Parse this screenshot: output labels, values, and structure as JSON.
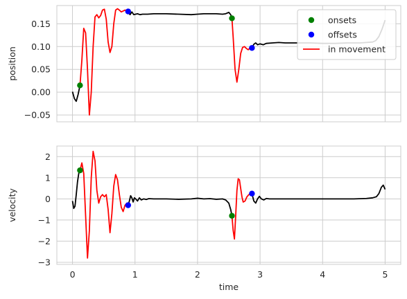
{
  "chart_data": [
    {
      "type": "line",
      "ylabel": "position",
      "xlabel": "",
      "xlim": [
        -0.25,
        5.25
      ],
      "ylim": [
        -0.065,
        0.19
      ],
      "x_ticks": [
        0,
        1,
        2,
        3,
        4,
        5
      ],
      "show_x_tick_labels": false,
      "y_ticks": [
        -0.05,
        0.0,
        0.05,
        0.1,
        0.15
      ],
      "y_tick_labels": [
        "−0.05",
        "0.00",
        "0.05",
        "0.10",
        "0.15"
      ],
      "grid": true,
      "legend": "top-right",
      "legend_entries": [
        {
          "label": "onsets",
          "kind": "marker",
          "color": "#008000"
        },
        {
          "label": "offsets",
          "kind": "marker",
          "color": "#0000ff"
        },
        {
          "label": "in movement",
          "kind": "line",
          "color": "#ff0000"
        }
      ],
      "series": [
        {
          "name": "",
          "color": "#000000",
          "x": [
            0,
            0.03,
            0.06,
            0.09,
            0.12
          ],
          "y": [
            0.001,
            -0.014,
            -0.02,
            -0.005,
            0.015
          ]
        },
        {
          "name": "in movement",
          "color": "#ff0000",
          "x": [
            0.12,
            0.15,
            0.18,
            0.21,
            0.24,
            0.27,
            0.3,
            0.33,
            0.36,
            0.39,
            0.42,
            0.45,
            0.48,
            0.51,
            0.54,
            0.57,
            0.6,
            0.63,
            0.66,
            0.69,
            0.72,
            0.75,
            0.78,
            0.81,
            0.84,
            0.87,
            0.89
          ],
          "y": [
            0.015,
            0.07,
            0.14,
            0.13,
            0.05,
            -0.05,
            0.0,
            0.1,
            0.165,
            0.17,
            0.163,
            0.168,
            0.18,
            0.182,
            0.16,
            0.11,
            0.087,
            0.1,
            0.15,
            0.18,
            0.183,
            0.18,
            0.176,
            0.178,
            0.18,
            0.178,
            0.177
          ]
        },
        {
          "name": "",
          "color": "#000000",
          "x": [
            0.89,
            0.92,
            0.95,
            0.98,
            1.01,
            1.04,
            1.08,
            1.12,
            1.2,
            1.3,
            1.5,
            1.7,
            1.9,
            2.0,
            2.1,
            2.2,
            2.3,
            2.4,
            2.45,
            2.5,
            2.53,
            2.55
          ],
          "y": [
            0.177,
            0.17,
            0.176,
            0.17,
            0.171,
            0.172,
            0.17,
            0.171,
            0.171,
            0.172,
            0.172,
            0.171,
            0.17,
            0.171,
            0.172,
            0.172,
            0.172,
            0.171,
            0.172,
            0.175,
            0.17,
            0.162
          ]
        },
        {
          "name": "in movement",
          "color": "#ff0000",
          "x": [
            2.55,
            2.57,
            2.6,
            2.63,
            2.66,
            2.69,
            2.72,
            2.75,
            2.78,
            2.81,
            2.84,
            2.87
          ],
          "y": [
            0.162,
            0.12,
            0.05,
            0.022,
            0.05,
            0.085,
            0.098,
            0.1,
            0.096,
            0.093,
            0.097,
            0.097
          ]
        },
        {
          "name": "",
          "color": "#000000",
          "x": [
            2.87,
            2.9,
            2.93,
            2.96,
            3.0,
            3.05,
            3.1,
            3.2,
            3.3,
            3.4,
            3.6,
            3.8,
            4.0,
            4.2,
            4.4,
            4.6,
            4.7,
            4.8,
            4.85,
            4.9,
            4.95,
            5.0
          ],
          "y": [
            0.097,
            0.105,
            0.108,
            0.104,
            0.106,
            0.104,
            0.107,
            0.108,
            0.109,
            0.108,
            0.108,
            0.108,
            0.107,
            0.107,
            0.108,
            0.108,
            0.109,
            0.11,
            0.113,
            0.122,
            0.138,
            0.158
          ]
        }
      ],
      "onsets": {
        "x": [
          0.12,
          2.55
        ],
        "y": [
          0.015,
          0.162
        ],
        "color": "#008000"
      },
      "offsets": {
        "x": [
          0.89,
          2.87
        ],
        "y": [
          0.177,
          0.097
        ],
        "color": "#0000ff"
      }
    },
    {
      "type": "line",
      "ylabel": "velocity",
      "xlabel": "time",
      "xlim": [
        -0.25,
        5.25
      ],
      "ylim": [
        -3.1,
        2.5
      ],
      "x_ticks": [
        0,
        1,
        2,
        3,
        4,
        5
      ],
      "x_tick_labels": [
        "0",
        "1",
        "2",
        "3",
        "4",
        "5"
      ],
      "y_ticks": [
        -3,
        -2,
        -1,
        0,
        1,
        2
      ],
      "y_tick_labels": [
        "−3",
        "−2",
        "−1",
        "0",
        "1",
        "2"
      ],
      "grid": true,
      "series": [
        {
          "name": "",
          "color": "#000000",
          "x": [
            0,
            0.02,
            0.04,
            0.06,
            0.08,
            0.1,
            0.12
          ],
          "y": [
            -0.1,
            -0.45,
            -0.35,
            0.2,
            0.8,
            1.2,
            1.35
          ]
        },
        {
          "name": "in movement",
          "color": "#ff0000",
          "x": [
            0.12,
            0.15,
            0.18,
            0.21,
            0.24,
            0.27,
            0.3,
            0.33,
            0.36,
            0.39,
            0.42,
            0.45,
            0.48,
            0.51,
            0.54,
            0.57,
            0.6,
            0.63,
            0.66,
            0.69,
            0.72,
            0.75,
            0.78,
            0.81,
            0.84,
            0.87,
            0.89
          ],
          "y": [
            1.35,
            1.7,
            1.2,
            -0.8,
            -2.8,
            -1.5,
            1.0,
            2.25,
            1.8,
            0.4,
            -0.2,
            0.1,
            0.2,
            0.1,
            0.2,
            -0.5,
            -1.6,
            -0.7,
            0.6,
            1.15,
            0.9,
            0.2,
            -0.4,
            -0.6,
            -0.3,
            -0.2,
            -0.3
          ]
        },
        {
          "name": "",
          "color": "#000000",
          "x": [
            0.89,
            0.91,
            0.93,
            0.95,
            0.97,
            0.99,
            1.01,
            1.04,
            1.07,
            1.1,
            1.14,
            1.18,
            1.22,
            1.3,
            1.5,
            1.7,
            1.9,
            2.0,
            2.1,
            2.2,
            2.3,
            2.4,
            2.45,
            2.5,
            2.53,
            2.55
          ],
          "y": [
            -0.3,
            -0.1,
            0.15,
            0.05,
            -0.15,
            0.05,
            0.0,
            -0.1,
            0.05,
            -0.05,
            0.0,
            -0.03,
            0.01,
            0.0,
            0.0,
            -0.02,
            0.0,
            0.03,
            0.0,
            0.01,
            -0.02,
            0.0,
            -0.05,
            -0.2,
            -0.5,
            -0.8
          ]
        },
        {
          "name": "in movement",
          "color": "#ff0000",
          "x": [
            2.55,
            2.57,
            2.59,
            2.61,
            2.63,
            2.65,
            2.67,
            2.69,
            2.71,
            2.73,
            2.76,
            2.79,
            2.82,
            2.85,
            2.87
          ],
          "y": [
            -0.8,
            -1.5,
            -1.9,
            -0.8,
            0.4,
            0.95,
            0.9,
            0.5,
            0.1,
            -0.15,
            -0.1,
            0.1,
            0.2,
            0.25,
            0.25
          ]
        },
        {
          "name": "",
          "color": "#000000",
          "x": [
            2.87,
            2.9,
            2.93,
            2.96,
            2.99,
            3.02,
            3.06,
            3.1,
            3.15,
            3.2,
            3.3,
            3.5,
            3.7,
            3.9,
            4.1,
            4.3,
            4.5,
            4.7,
            4.8,
            4.86,
            4.9,
            4.94,
            4.97,
            5.0
          ],
          "y": [
            0.25,
            -0.1,
            -0.2,
            0.0,
            0.12,
            0.0,
            -0.05,
            0.02,
            0.0,
            0.0,
            0.0,
            0.0,
            0.0,
            0.0,
            0.0,
            0.0,
            0.0,
            0.02,
            0.05,
            0.1,
            0.25,
            0.55,
            0.65,
            0.45
          ]
        }
      ],
      "onsets": {
        "x": [
          0.12,
          2.55
        ],
        "y": [
          1.35,
          -0.8
        ],
        "color": "#008000"
      },
      "offsets": {
        "x": [
          0.89,
          2.87
        ],
        "y": [
          -0.3,
          0.25
        ],
        "color": "#0000ff"
      }
    }
  ]
}
